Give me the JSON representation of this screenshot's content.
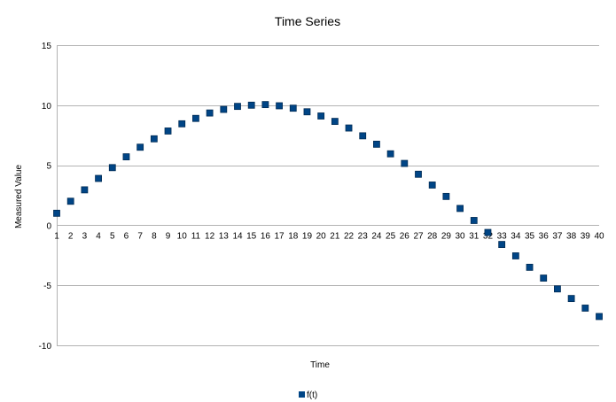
{
  "chart_data": {
    "type": "scatter",
    "title": "Time Series",
    "xlabel": "Time",
    "ylabel": "Measured Value",
    "xlim": [
      1,
      40
    ],
    "ylim": [
      -10,
      15
    ],
    "yticks": [
      15,
      10,
      5,
      0,
      -5,
      -10
    ],
    "xticks": [
      1,
      2,
      3,
      4,
      5,
      6,
      7,
      8,
      9,
      10,
      11,
      12,
      13,
      14,
      15,
      16,
      17,
      18,
      19,
      20,
      21,
      22,
      23,
      24,
      25,
      26,
      27,
      28,
      29,
      30,
      31,
      32,
      33,
      34,
      35,
      36,
      37,
      38,
      39,
      40
    ],
    "grid": "horizontal",
    "legend_position": "bottom-center",
    "marker_color": "#004586",
    "series": [
      {
        "name": "f(t)",
        "x": [
          1,
          2,
          3,
          4,
          5,
          6,
          7,
          8,
          9,
          10,
          11,
          12,
          13,
          14,
          15,
          16,
          17,
          18,
          19,
          20,
          21,
          22,
          23,
          24,
          25,
          26,
          27,
          28,
          29,
          30,
          31,
          32,
          33,
          34,
          35,
          36,
          37,
          38,
          39,
          40
        ],
        "y": [
          1.0,
          2.0,
          2.95,
          3.9,
          4.8,
          5.7,
          6.5,
          7.2,
          7.85,
          8.45,
          8.9,
          9.35,
          9.65,
          9.9,
          10.0,
          10.05,
          9.95,
          9.75,
          9.45,
          9.1,
          8.65,
          8.1,
          7.45,
          6.75,
          5.95,
          5.15,
          4.25,
          3.35,
          2.4,
          1.4,
          0.4,
          -0.6,
          -1.6,
          -2.55,
          -3.5,
          -4.4,
          -5.3,
          -6.1,
          -6.9,
          -7.6
        ]
      }
    ]
  }
}
